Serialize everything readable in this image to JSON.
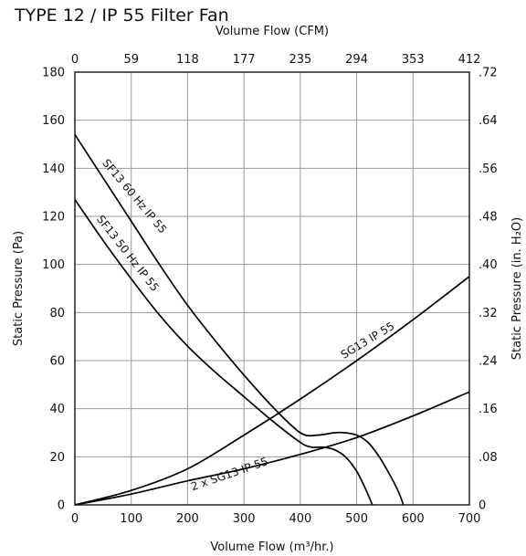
{
  "chart_data": {
    "type": "line",
    "title": "TYPE 12 / IP 55 Filter Fan",
    "xlabel": "Volume Flow (m³/hr.)",
    "x2label": "Volume Flow (CFM)",
    "ylabel": "Static Pressure (Pa)",
    "y2label": "Static Pressure (in. H₂O)",
    "xlim": [
      0,
      700
    ],
    "ylim": [
      0,
      180
    ],
    "x_ticks": [
      "0",
      "100",
      "200",
      "300",
      "400",
      "500",
      "600",
      "700"
    ],
    "y_ticks": [
      "0",
      "20",
      "40",
      "60",
      "80",
      "100",
      "120",
      "140",
      "160",
      "180"
    ],
    "x2_ticks": [
      "0",
      "59",
      "118",
      "177",
      "235",
      "294",
      "353",
      "412"
    ],
    "y2_ticks": [
      "0",
      ".08",
      ".16",
      ".24",
      ".32",
      ".40",
      ".48",
      ".56",
      ".64",
      ".72"
    ],
    "grid": true,
    "series": [
      {
        "name": "SF13 60 Hz IP 55",
        "x": [
          0,
          50,
          100,
          150,
          200,
          250,
          300,
          350,
          400,
          430,
          460,
          480,
          500,
          520,
          540,
          560,
          575,
          583
        ],
        "y": [
          154,
          136,
          118,
          100,
          83,
          68,
          54,
          41,
          30,
          29,
          30,
          30,
          29,
          26,
          20,
          12,
          5,
          0
        ]
      },
      {
        "name": "SF13 50 Hz IP 55",
        "x": [
          0,
          50,
          100,
          150,
          200,
          250,
          300,
          350,
          400,
          420,
          440,
          460,
          480,
          500,
          515,
          528
        ],
        "y": [
          127,
          110,
          94,
          79,
          66,
          55,
          45,
          35,
          26,
          24,
          24,
          23,
          20,
          14,
          7,
          0
        ]
      },
      {
        "name": "SG13 IP 55",
        "x": [
          0,
          100,
          200,
          300,
          400,
          500,
          600,
          700
        ],
        "y": [
          0,
          6,
          15,
          29,
          44,
          60,
          77,
          95
        ]
      },
      {
        "name": "2 x SG13 IP 55",
        "x": [
          0,
          100,
          200,
          300,
          400,
          500,
          600,
          700
        ],
        "y": [
          0,
          4.5,
          10,
          15,
          21,
          28,
          37,
          47
        ]
      }
    ]
  }
}
